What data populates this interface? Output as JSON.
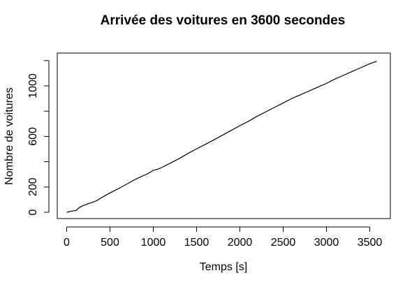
{
  "chart_data": {
    "type": "line",
    "title": "Arrivée des voitures en 3600 secondes",
    "xlabel": "Temps [s]",
    "ylabel": "Nombre de voitures",
    "xlim": [
      0,
      3600
    ],
    "ylim": [
      0,
      1210
    ],
    "x_ticks": [
      0,
      500,
      1000,
      1500,
      2000,
      2500,
      3000,
      3500
    ],
    "x_tick_labels": [
      "0",
      "500",
      "1000",
      "1500",
      "2000",
      "2500",
      "3000",
      "3500"
    ],
    "y_ticks": [
      0,
      200,
      400,
      600,
      800,
      1000,
      1200
    ],
    "y_tick_labels": [
      "0",
      "200",
      "",
      "600",
      "",
      "1000",
      ""
    ],
    "grid": false,
    "line_color": "#000000",
    "series": [
      {
        "x": [
          0,
          60,
          110,
          140,
          180,
          250,
          300,
          340,
          400,
          500,
          600,
          700,
          800,
          880,
          950,
          1000,
          1050,
          1100,
          1200,
          1300,
          1400,
          1500,
          1600,
          1700,
          1800,
          1900,
          2000,
          2100,
          2200,
          2300,
          2400,
          2500,
          2600,
          2700,
          2800,
          2900,
          3000,
          3100,
          3200,
          3300,
          3400,
          3500,
          3580
        ],
        "y": [
          0,
          10,
          15,
          35,
          50,
          68,
          80,
          90,
          115,
          153,
          188,
          225,
          263,
          288,
          310,
          332,
          340,
          355,
          390,
          425,
          465,
          502,
          537,
          573,
          610,
          648,
          685,
          720,
          760,
          795,
          830,
          865,
          900,
          930,
          960,
          990,
          1020,
          1055,
          1085,
          1115,
          1145,
          1175,
          1195
        ]
      }
    ]
  }
}
